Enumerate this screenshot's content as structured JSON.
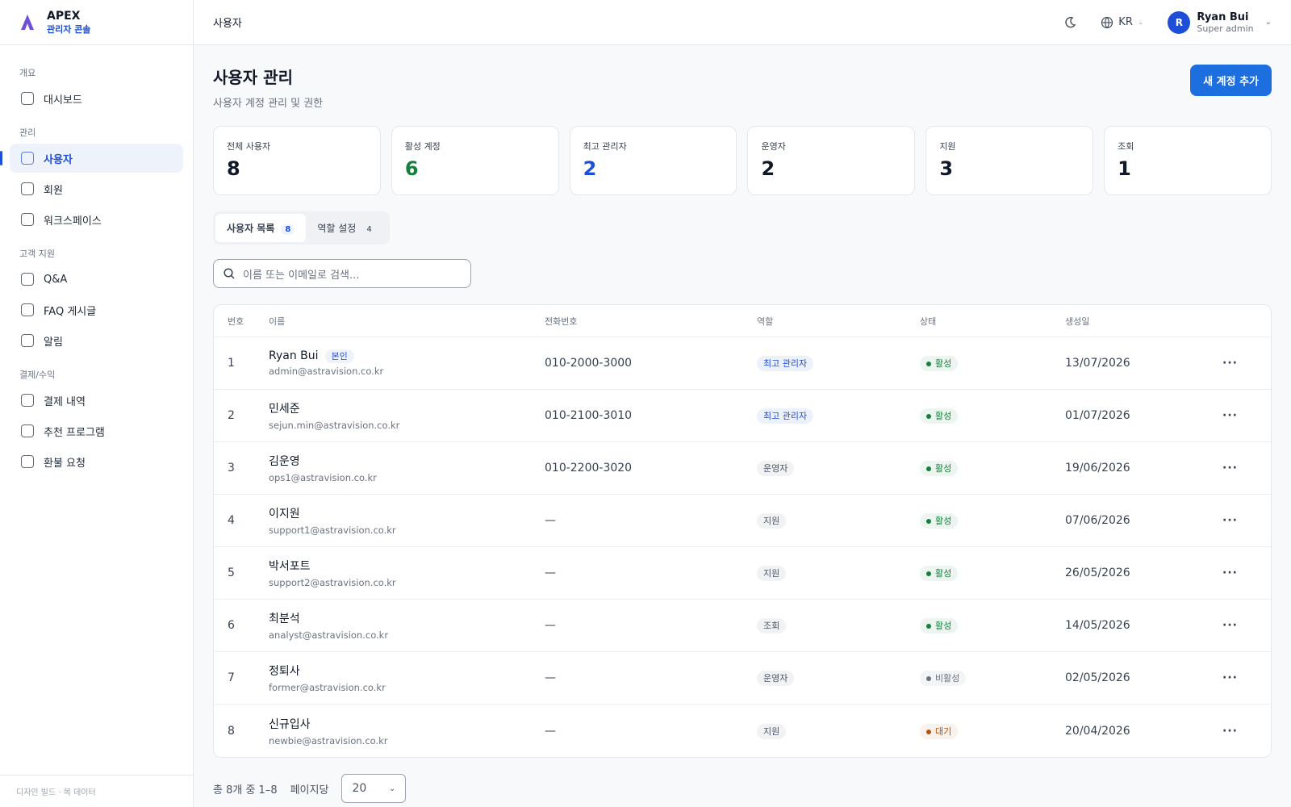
{
  "brand": {
    "name": "APEX",
    "subtitle": "관리자 콘솔"
  },
  "sidebar": {
    "sections": [
      {
        "label": "개요",
        "items": [
          {
            "label": "대시보드"
          }
        ]
      },
      {
        "label": "관리",
        "items": [
          {
            "label": "사용자",
            "active": true
          },
          {
            "label": "회원"
          },
          {
            "label": "워크스페이스"
          }
        ]
      },
      {
        "label": "고객 지원",
        "items": [
          {
            "label": "Q&A"
          },
          {
            "label": "FAQ 게시글"
          },
          {
            "label": "알림"
          }
        ]
      },
      {
        "label": "결제/수익",
        "items": [
          {
            "label": "결제 내역"
          },
          {
            "label": "추천 프로그램"
          },
          {
            "label": "환불 요청"
          }
        ]
      }
    ],
    "footer": "디자인 빌드 · 목 데이터"
  },
  "topbar": {
    "breadcrumb": "사용자",
    "language": "KR",
    "user": {
      "initial": "R",
      "name": "Ryan Bui",
      "role": "Super admin"
    }
  },
  "page": {
    "title": "사용자 관리",
    "subtitle": "사용자 계정 관리 및 권한",
    "add_button": "새 계정 추가"
  },
  "stats": [
    {
      "label": "전체 사용자",
      "value": 8,
      "color": "#111827"
    },
    {
      "label": "활성 계정",
      "value": 6,
      "color": "#15803d"
    },
    {
      "label": "최고 관리자",
      "value": 2,
      "color": "#1d4ed8"
    },
    {
      "label": "운영자",
      "value": 2,
      "color": "#111827"
    },
    {
      "label": "지원",
      "value": 3,
      "color": "#111827"
    },
    {
      "label": "조회",
      "value": 1,
      "color": "#111827"
    }
  ],
  "tabs": [
    {
      "label": "사용자 목록",
      "count": 8,
      "active": true
    },
    {
      "label": "역할 설정",
      "count": 4
    }
  ],
  "search_placeholder": "이름 또는 이메일로 검색...",
  "table": {
    "columns": [
      "번호",
      "이름",
      "전화번호",
      "역할",
      "상태",
      "생성일"
    ],
    "rows": [
      {
        "no": 1,
        "name": "Ryan Bui",
        "badge": "본인",
        "email": "admin@astravision.co.kr",
        "phone": "010-2000-3000",
        "role": "최고 관리자",
        "role_color": "#1d4ed8",
        "status": "활성",
        "status_color": "#15803d",
        "created": "13/07/2026"
      },
      {
        "no": 2,
        "name": "민세준",
        "email": "sejun.min@astravision.co.kr",
        "phone": "010-2100-3010",
        "role": "최고 관리자",
        "role_color": "#1d4ed8",
        "status": "활성",
        "status_color": "#15803d",
        "created": "01/07/2026"
      },
      {
        "no": 3,
        "name": "김운영",
        "email": "ops1@astravision.co.kr",
        "phone": "010-2200-3020",
        "role": "운영자",
        "role_color": "#4b5563",
        "status": "활성",
        "status_color": "#15803d",
        "created": "19/06/2026"
      },
      {
        "no": 4,
        "name": "이지원",
        "email": "support1@astravision.co.kr",
        "phone": "—",
        "role": "지원",
        "role_color": "#4b5563",
        "status": "활성",
        "status_color": "#15803d",
        "created": "07/06/2026"
      },
      {
        "no": 5,
        "name": "박서포트",
        "email": "support2@astravision.co.kr",
        "phone": "—",
        "role": "지원",
        "role_color": "#4b5563",
        "status": "활성",
        "status_color": "#15803d",
        "created": "26/05/2026"
      },
      {
        "no": 6,
        "name": "최분석",
        "email": "analyst@astravision.co.kr",
        "phone": "—",
        "role": "조회",
        "role_color": "#4b5563",
        "status": "활성",
        "status_color": "#15803d",
        "created": "14/05/2026"
      },
      {
        "no": 7,
        "name": "정퇴사",
        "email": "former@astravision.co.kr",
        "phone": "—",
        "role": "운영자",
        "role_color": "#4b5563",
        "status": "비활성",
        "status_color": "#6b7280",
        "created": "02/05/2026"
      },
      {
        "no": 8,
        "name": "신규입사",
        "email": "newbie@astravision.co.kr",
        "phone": "—",
        "role": "지원",
        "role_color": "#4b5563",
        "status": "대기",
        "status_color": "#b45309",
        "created": "20/04/2026"
      }
    ]
  },
  "pagination": {
    "summary": "총 8개 중 1–8",
    "per_page_label": "페이지당",
    "per_page": 20
  }
}
